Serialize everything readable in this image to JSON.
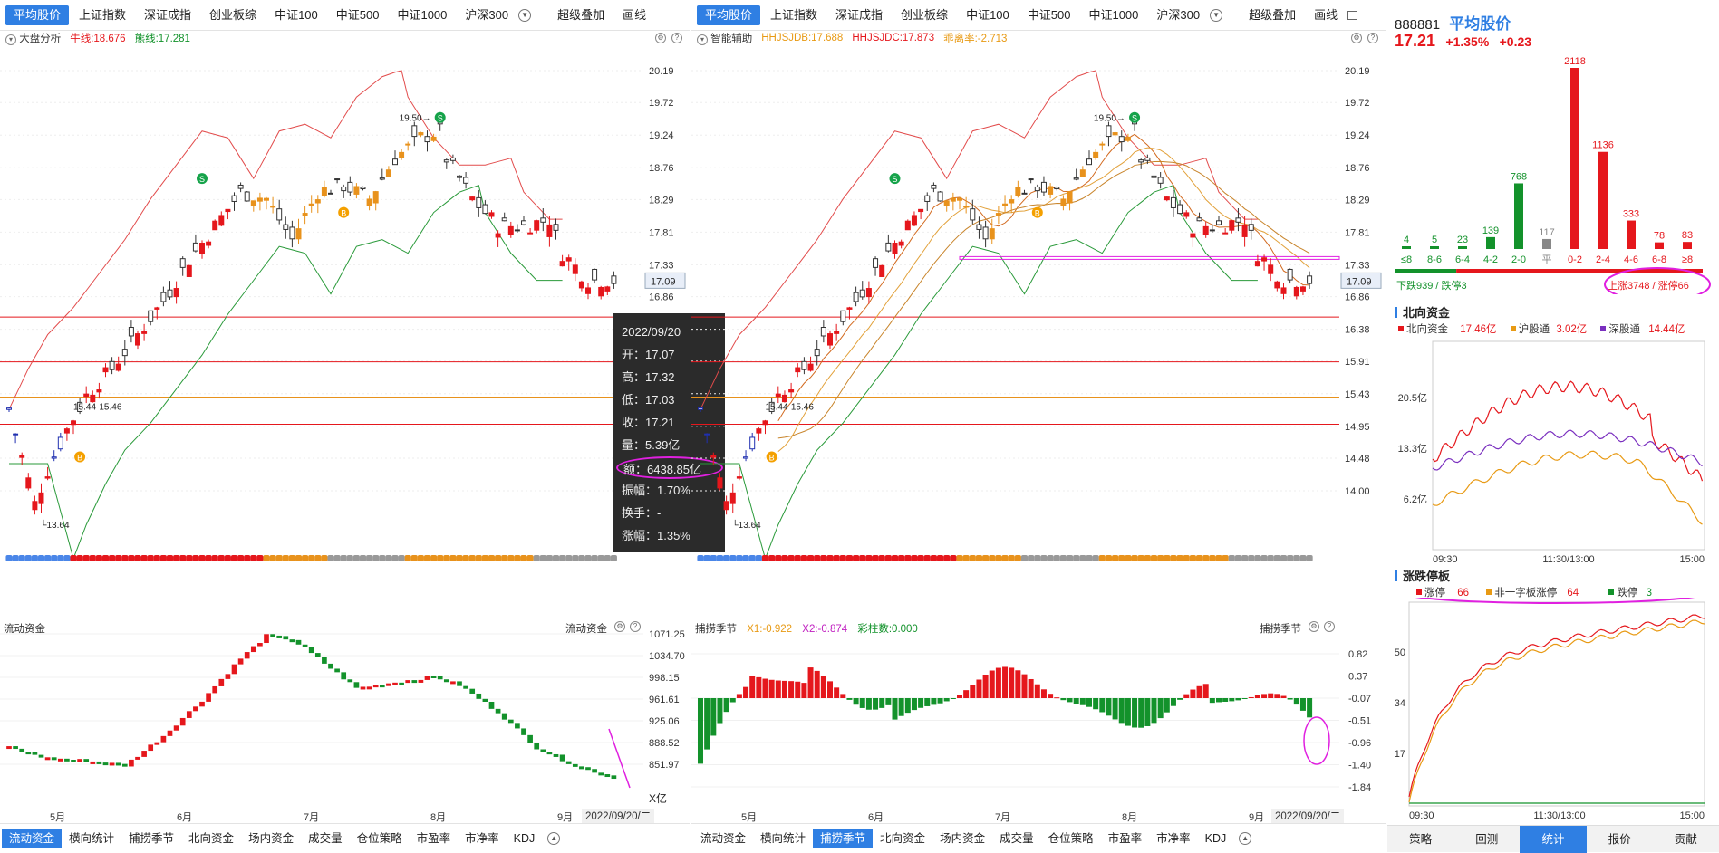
{
  "left_panel": {
    "tabs": [
      "平均股价",
      "上证指数",
      "深证成指",
      "创业板综",
      "中证100",
      "中证500",
      "中证1000",
      "沪深300"
    ],
    "extra_tabs": [
      "超级叠加",
      "画线"
    ],
    "info": {
      "name": "大盘分析",
      "niu": "牛线:18.676",
      "xiong": "熊线:17.281"
    },
    "price_axis": [
      "20.19",
      "19.72",
      "19.24",
      "18.76",
      "18.29",
      "17.81",
      "17.33",
      "16.86",
      "16.38",
      "15.91",
      "15.43",
      "14.95",
      "14.48",
      "14.00"
    ],
    "price_tag": "17.09",
    "high_label": "19.50",
    "low_label": "13.64",
    "range_label": "15.44-15.46",
    "tooltip": {
      "date": "2022/09/20",
      "open": "开：17.07",
      "high": "高：17.32",
      "low": "低：17.03",
      "close": "收：17.21",
      "vol": "量：5.39亿",
      "amount": "额：6438.85亿",
      "amp": "振幅：1.70%",
      "turnover": "换手：-",
      "chg": "涨幅：1.35%"
    },
    "sub_title": "流动资金",
    "sub_title_right": "流动资金",
    "sub_axis": [
      "1071.25",
      "1034.70",
      "998.15",
      "961.61",
      "925.06",
      "888.52",
      "851.97",
      "X亿"
    ],
    "months": [
      "5月",
      "6月",
      "7月",
      "8月",
      "9月"
    ],
    "date_tag": "2022/09/20/二",
    "bottom_tabs": [
      "流动资金",
      "横向统计",
      "捕捞季节",
      "北向资金",
      "场内资金",
      "成交量",
      "仓位策略",
      "市盈率",
      "市净率",
      "KDJ"
    ]
  },
  "right_panel": {
    "tabs": [
      "平均股价",
      "上证指数",
      "深证成指",
      "创业板综",
      "中证100",
      "中证500",
      "中证1000",
      "沪深300"
    ],
    "extra_tabs": [
      "超级叠加",
      "画线"
    ],
    "info": {
      "name": "智能辅助",
      "a": "HHJSJDB:17.688",
      "b": "HHJSJDC:17.873",
      "c": "乖离率:-2.713"
    },
    "price_axis": [
      "20.19",
      "19.72",
      "19.24",
      "18.76",
      "18.29",
      "17.81",
      "17.33",
      "16.86",
      "16.38",
      "15.91",
      "15.43",
      "14.95",
      "14.48",
      "14.00"
    ],
    "price_tag": "17.09",
    "high_label": "19.50",
    "low_label": "13.64",
    "range_label": "15.44-15.46",
    "sub_title": "捕捞季节",
    "sub_x1": "X1:-0.922",
    "sub_x2": "X2:-0.874",
    "sub_bars": "彩柱数:0.000",
    "sub_title_right": "捕捞季节",
    "sub_axis": [
      "0.82",
      "0.37",
      "-0.07",
      "-0.51",
      "-0.96",
      "-1.40",
      "-1.84"
    ],
    "months": [
      "5月",
      "6月",
      "7月",
      "8月",
      "9月"
    ],
    "date_tag": "2022/09/20/二",
    "bottom_tabs": [
      "流动资金",
      "横向统计",
      "捕捞季节",
      "北向资金",
      "场内资金",
      "成交量",
      "仓位策略",
      "市盈率",
      "市净率",
      "KDJ"
    ]
  },
  "side": {
    "code": "888881",
    "name": "平均股价",
    "price": "17.21",
    "pct": "+1.35%",
    "chg": "+0.23",
    "dist_chart": {
      "categories": [
        "≤8",
        "8-6",
        "6-4",
        "4-2",
        "2-0",
        "平",
        "0-2",
        "2-4",
        "4-6",
        "6-8",
        "≥8"
      ],
      "values": [
        4,
        5,
        23,
        139,
        768,
        117,
        2118,
        1136,
        333,
        78,
        83
      ]
    },
    "down_label": "下跌939 / 跌停3",
    "up_label": "上涨3748 / 涨停66",
    "north_title": "北向资金",
    "north_legend": {
      "a": "北向资金",
      "av": "17.46亿",
      "b": "沪股通",
      "bv": "3.02亿",
      "c": "深股通",
      "cv": "14.44亿"
    },
    "north_axis": [
      "20.5亿",
      "13.3亿",
      "6.2亿"
    ],
    "north_times": [
      "09:30",
      "11:30/13:00",
      "15:00"
    ],
    "limit_title": "涨跌停板",
    "limit_legend": {
      "a": "涨停",
      "av": "66",
      "b": "非一字板涨停",
      "bv": "64",
      "c": "跌停",
      "cv": "3"
    },
    "limit_axis": [
      "50",
      "34",
      "17"
    ],
    "limit_times": [
      "09:30",
      "11:30/13:00",
      "15:00"
    ],
    "bottom_tabs": [
      "策略",
      "回测",
      "统计",
      "报价",
      "贡献"
    ],
    "colors": {
      "up": "#e5171c",
      "down": "#13922b",
      "accent": "#2f7fe3",
      "highlight": "#e020e0"
    }
  }
}
